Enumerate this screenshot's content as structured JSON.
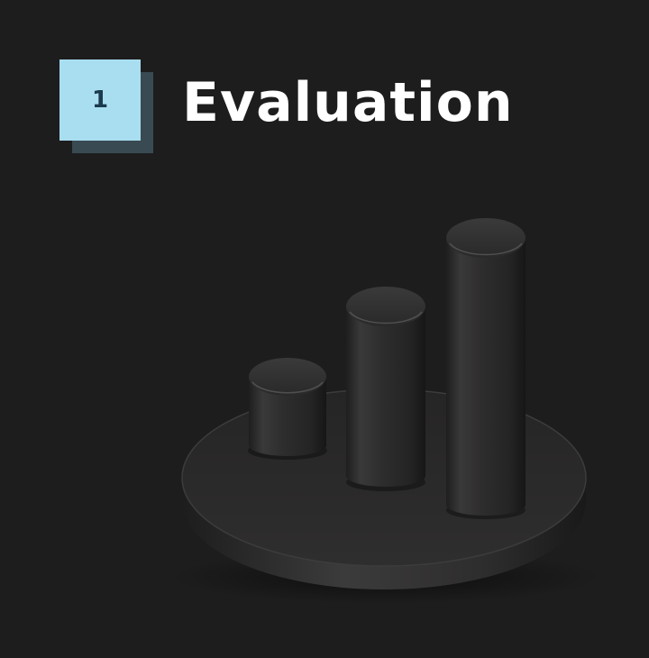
{
  "step": {
    "number": "1",
    "title": "Evaluation"
  },
  "illustration": {
    "icon": "3d-bar-chart-icon",
    "colors": {
      "background": "#1d1d1d",
      "badge_face": "#a9def0",
      "badge_shadow": "#3a4a52",
      "badge_text": "#1b3a4e",
      "title_text": "#ffffff",
      "object": "#2c2b2b"
    }
  }
}
